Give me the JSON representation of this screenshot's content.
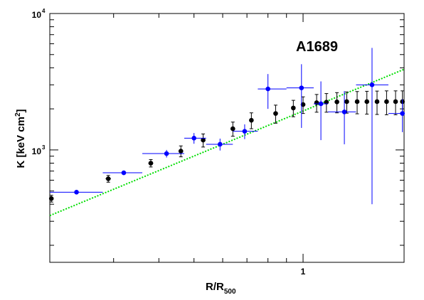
{
  "chart_data": {
    "type": "scatter",
    "annotation": "A1689",
    "xlabel": {
      "main": "R/R",
      "sub": "500"
    },
    "ylabel": {
      "main": "K [keV cm",
      "sup": "2",
      "close": "]"
    },
    "xscale": "log",
    "yscale": "log",
    "xlim": [
      0.2,
      1.9
    ],
    "ylim": [
      150,
      10000
    ],
    "x_ticks": [
      {
        "value": 1,
        "label": "1"
      }
    ],
    "y_ticks": [
      {
        "value": 1000,
        "label": "10",
        "exp": "3"
      },
      {
        "value": 10000,
        "label": "10",
        "exp": "4"
      }
    ],
    "grid": false,
    "colors": {
      "series_black": "#000000",
      "series_blue": "#0000ff",
      "model": "#00dd00"
    },
    "series": [
      {
        "color": "black",
        "points": [
          {
            "x": 0.202,
            "y": 440,
            "yerr": 25,
            "xlo": 0.199,
            "xhi": 0.205
          },
          {
            "x": 0.29,
            "y": 615,
            "yerr": 35,
            "xlo": 0.285,
            "xhi": 0.295
          },
          {
            "x": 0.38,
            "y": 800,
            "yerr": 50,
            "xlo": 0.374,
            "xhi": 0.386
          },
          {
            "x": 0.46,
            "y": 980,
            "yerr": 90,
            "xlo": 0.454,
            "xhi": 0.466
          },
          {
            "x": 0.53,
            "y": 1180,
            "yerr": 130,
            "xlo": 0.523,
            "xhi": 0.537
          },
          {
            "x": 0.64,
            "y": 1430,
            "yerr": 170,
            "xlo": 0.633,
            "xhi": 0.647
          },
          {
            "x": 0.72,
            "y": 1650,
            "yerr": 220,
            "xlo": 0.713,
            "xhi": 0.727
          },
          {
            "x": 0.84,
            "y": 1850,
            "yerr": 280,
            "xlo": 0.833,
            "xhi": 0.847
          },
          {
            "x": 0.94,
            "y": 2030,
            "yerr": 280,
            "xlo": 0.93,
            "xhi": 0.95
          },
          {
            "x": 1.0,
            "y": 2150,
            "yerr": 300,
            "xlo": 0.99,
            "xhi": 1.01
          },
          {
            "x": 1.09,
            "y": 2220,
            "yerr": 330,
            "xlo": 1.08,
            "xhi": 1.1
          },
          {
            "x": 1.16,
            "y": 2240,
            "yerr": 350,
            "xlo": 1.15,
            "xhi": 1.17
          },
          {
            "x": 1.24,
            "y": 2250,
            "yerr": 380,
            "xlo": 1.23,
            "xhi": 1.25
          },
          {
            "x": 1.32,
            "y": 2260,
            "yerr": 400,
            "xlo": 1.31,
            "xhi": 1.33
          },
          {
            "x": 1.41,
            "y": 2260,
            "yerr": 420,
            "xlo": 1.4,
            "xhi": 1.42
          },
          {
            "x": 1.5,
            "y": 2260,
            "yerr": 430,
            "xlo": 1.49,
            "xhi": 1.51
          },
          {
            "x": 1.6,
            "y": 2260,
            "yerr": 440,
            "xlo": 1.59,
            "xhi": 1.61
          },
          {
            "x": 1.7,
            "y": 2260,
            "yerr": 450,
            "xlo": 1.69,
            "xhi": 1.71
          },
          {
            "x": 1.8,
            "y": 2260,
            "yerr": 450,
            "xlo": 1.79,
            "xhi": 1.81
          },
          {
            "x": 1.88,
            "y": 2260,
            "yerr": 450,
            "xlo": 1.87,
            "xhi": 1.89
          }
        ]
      },
      {
        "color": "blue",
        "points": [
          {
            "x": 0.237,
            "y": 490,
            "yerr": 15,
            "xlo": 0.2,
            "xhi": 0.28
          },
          {
            "x": 0.32,
            "y": 680,
            "yerr": 25,
            "xlo": 0.28,
            "xhi": 0.36
          },
          {
            "x": 0.42,
            "y": 940,
            "yerr": 60,
            "xlo": 0.36,
            "xhi": 0.47
          },
          {
            "x": 0.5,
            "y": 1220,
            "yerr": 110,
            "xlo": 0.47,
            "xhi": 0.54
          },
          {
            "x": 0.59,
            "y": 1100,
            "yerr": 110,
            "xlo": 0.54,
            "xhi": 0.64
          },
          {
            "x": 0.69,
            "y": 1370,
            "yerr": 170,
            "xlo": 0.64,
            "xhi": 0.75
          },
          {
            "x": 0.8,
            "y": 2800,
            "yerr": 800,
            "xlo": 0.75,
            "xhi": 0.9
          },
          {
            "x": 0.99,
            "y": 2850,
            "yerr": 1400,
            "xlo": 0.9,
            "xhi": 1.07
          },
          {
            "x": 1.12,
            "y": 2180,
            "yerr": 1000,
            "xlo": 1.07,
            "xhi": 1.17
          },
          {
            "x": 1.3,
            "y": 1900,
            "yerr": 800,
            "xlo": 1.17,
            "xhi": 1.4
          },
          {
            "x": 1.55,
            "y": 3000,
            "yerr": 2600,
            "xlo": 1.4,
            "xhi": 1.72
          },
          {
            "x": 1.88,
            "y": 1850,
            "yerr": 500,
            "xlo": 1.72,
            "xhi": 1.9
          }
        ]
      }
    ],
    "model_line": {
      "style": "dotted",
      "x": [
        0.2,
        1.9
      ],
      "y": [
        330,
        3900
      ]
    }
  }
}
